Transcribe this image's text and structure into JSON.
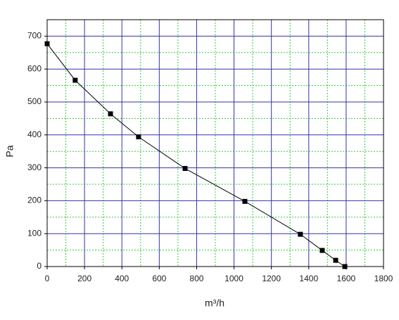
{
  "chart_data": {
    "type": "line",
    "x_label": "m³/h",
    "y_label": "Pa",
    "x": [
      0,
      150,
      339,
      489,
      738,
      1058,
      1355,
      1472,
      1544,
      1593
    ],
    "series": [
      {
        "color": "#000000",
        "values": [
          677,
          566,
          464,
          394,
          298,
          198,
          98,
          49,
          19,
          0
        ]
      }
    ],
    "xlim": [
      0,
      1800
    ],
    "xticks": [
      0,
      200,
      400,
      600,
      800,
      1000,
      1200,
      1400,
      1600,
      1800
    ],
    "ylim": [
      0,
      750
    ],
    "yticks": [
      0,
      100,
      200,
      300,
      400,
      500,
      600,
      700
    ],
    "grid": true,
    "grid_color": "#3333aa",
    "minor_grid": true,
    "minor_grid_color": "#33cc33"
  }
}
